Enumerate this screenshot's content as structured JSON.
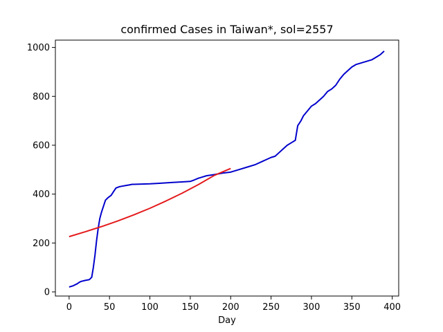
{
  "chart_data": {
    "type": "line",
    "title": "confirmed Cases in Taiwan*, sol=2557",
    "xlabel": "Day",
    "ylabel": "",
    "xlim": [
      -17,
      408
    ],
    "ylim": [
      -17,
      1030
    ],
    "xticks": [
      0,
      50,
      100,
      150,
      200,
      250,
      300,
      350,
      400
    ],
    "yticks": [
      0,
      200,
      400,
      600,
      800,
      1000
    ],
    "grid": false,
    "series": [
      {
        "color": "#0000cc",
        "x": [
          0,
          5,
          10,
          13,
          15,
          20,
          25,
          28,
          30,
          32,
          34,
          36,
          38,
          40,
          42,
          45,
          48,
          52,
          55,
          58,
          62,
          65,
          70,
          75,
          78,
          80,
          90,
          100,
          110,
          120,
          130,
          140,
          150,
          155,
          160,
          165,
          170,
          180,
          190,
          200,
          210,
          220,
          230,
          240,
          250,
          255,
          260,
          265,
          270,
          275,
          280,
          283,
          287,
          290,
          295,
          300,
          305,
          310,
          315,
          320,
          325,
          330,
          335,
          340,
          345,
          350,
          355,
          360,
          365,
          370,
          375,
          380,
          385,
          390
        ],
        "y": [
          20,
          25,
          33,
          40,
          43,
          47,
          50,
          60,
          100,
          150,
          210,
          260,
          300,
          325,
          345,
          375,
          385,
          395,
          410,
          425,
          430,
          432,
          435,
          438,
          440,
          440,
          441,
          442,
          444,
          446,
          448,
          450,
          452,
          458,
          465,
          470,
          475,
          480,
          486,
          490,
          500,
          510,
          520,
          535,
          550,
          555,
          570,
          585,
          600,
          610,
          620,
          680,
          700,
          720,
          740,
          760,
          770,
          785,
          800,
          820,
          830,
          845,
          870,
          890,
          905,
          920,
          930,
          935,
          940,
          945,
          950,
          960,
          970,
          985
        ]
      },
      {
        "color": "#e41a1c",
        "x": [
          0,
          20,
          40,
          60,
          80,
          100,
          120,
          140,
          160,
          180,
          200
        ],
        "y": [
          226,
          246,
          267,
          290,
          315,
          342,
          372,
          404,
          439,
          477,
          505
        ]
      }
    ]
  }
}
